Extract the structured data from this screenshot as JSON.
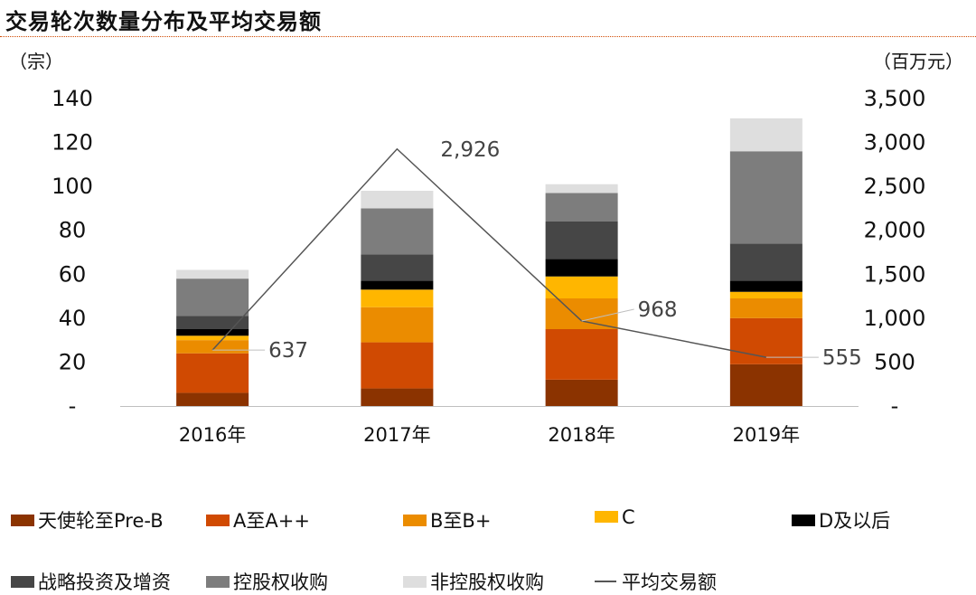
{
  "title": "交易轮次数量分布及平均交易额",
  "left_unit": "（宗）",
  "right_unit": "（百万元）",
  "colors": {
    "title_rule": "#d04a02",
    "line": "#555555"
  },
  "chart_data": {
    "type": "bar",
    "stacked": true,
    "categories": [
      "2016年",
      "2017年",
      "2018年",
      "2019年"
    ],
    "ylim": [
      0,
      140
    ],
    "yticks": [
      "-",
      "20",
      "40",
      "60",
      "80",
      "100",
      "120",
      "140"
    ],
    "y2lim": [
      0,
      3500
    ],
    "y2ticks": [
      "-",
      "500",
      "1,000",
      "1,500",
      "2,000",
      "2,500",
      "3,000",
      "3,500"
    ],
    "series": [
      {
        "name": "天使轮至Pre-B",
        "color": "#8b3300",
        "values": [
          6,
          8,
          12,
          19
        ]
      },
      {
        "name": "A至A++",
        "color": "#d04a02",
        "values": [
          18,
          21,
          23,
          21
        ]
      },
      {
        "name": "B至B+",
        "color": "#eb8c00",
        "values": [
          6,
          16,
          14,
          9
        ]
      },
      {
        "name": "C",
        "color": "#ffb600",
        "values": [
          2,
          8,
          10,
          3
        ]
      },
      {
        "name": "D及以后",
        "color": "#000000",
        "values": [
          3,
          4,
          8,
          5
        ]
      },
      {
        "name": "战略投资及增资",
        "color": "#464646",
        "values": [
          6,
          12,
          17,
          17
        ]
      },
      {
        "name": "控股权收购",
        "color": "#7d7d7d",
        "values": [
          17,
          21,
          13,
          42
        ]
      },
      {
        "name": "非控股权收购",
        "color": "#dedede",
        "values": [
          4,
          8,
          4,
          15
        ]
      }
    ],
    "line": {
      "name": "平均交易额",
      "axis": "right",
      "values": [
        637,
        2926,
        968,
        555
      ],
      "labels": [
        "637",
        "2,926",
        "968",
        "555"
      ]
    },
    "legend": "bottom",
    "grid": false
  }
}
